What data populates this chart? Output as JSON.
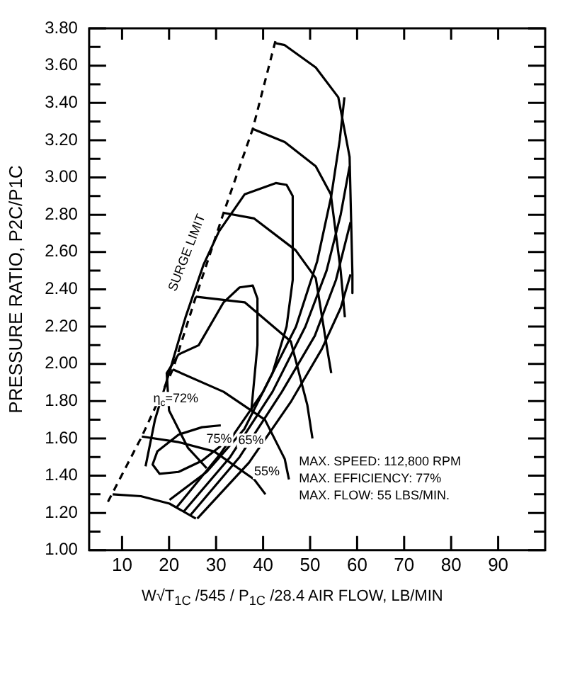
{
  "chart_data": {
    "type": "line",
    "ylabel": "PRESSURE RATIO, P2C/P1C",
    "xlabel": "W√T$_{1C}$ /545 / P$_{1C}$ /28.4 AIR FLOW, LB/MIN",
    "xlim": [
      3,
      100
    ],
    "xticks": [
      10,
      20,
      30,
      40,
      50,
      60,
      70,
      80,
      90
    ],
    "ylim": [
      1,
      3.8
    ],
    "yticks": [
      {
        "value": 1,
        "label": "1.00"
      },
      {
        "value": 1.1,
        "label": null
      },
      {
        "value": 1.2,
        "label": "1.20"
      },
      {
        "value": 1.3,
        "label": null
      },
      {
        "value": 1.4,
        "label": "1.40"
      },
      {
        "value": 1.5,
        "label": null
      },
      {
        "value": 1.6,
        "label": "1.60"
      },
      {
        "value": 1.7,
        "label": null
      },
      {
        "value": 1.8,
        "label": "1.80"
      },
      {
        "value": 1.9,
        "label": null
      },
      {
        "value": 2,
        "label": "2.00"
      },
      {
        "value": 2.1,
        "label": null
      },
      {
        "value": 2.2,
        "label": "2.20"
      },
      {
        "value": 2.3,
        "label": null
      },
      {
        "value": 2.4,
        "label": "2.40"
      },
      {
        "value": 2.5,
        "label": null
      },
      {
        "value": 2.6,
        "label": "2.60"
      },
      {
        "value": 2.7,
        "label": null
      },
      {
        "value": 2.8,
        "label": "2.80"
      },
      {
        "value": 2.9,
        "label": null
      },
      {
        "value": 3,
        "label": "3.00"
      },
      {
        "value": 3.1,
        "label": null
      },
      {
        "value": 3.2,
        "label": "3.20"
      },
      {
        "value": 3.3,
        "label": null
      },
      {
        "value": 3.4,
        "label": "3.40"
      },
      {
        "value": 3.5,
        "label": null
      },
      {
        "value": 3.6,
        "label": "3.60"
      },
      {
        "value": 3.7,
        "label": null
      },
      {
        "value": 3.8,
        "label": "3.80"
      }
    ],
    "grid": false,
    "legend": false,
    "marker": "none",
    "line_style": "solid",
    "series": [
      {
        "color": "#000000",
        "line_style": "dashed",
        "x": [
          7,
          14.2,
          20.8,
          25.7,
          31.6,
          37.8,
          42.7
        ],
        "values": [
          1.26,
          1.61,
          1.97,
          2.36,
          2.81,
          3.26,
          3.74
        ]
      },
      {
        "color": "#000000",
        "x": [
          8,
          14,
          20.1,
          25.7
        ],
        "values": [
          1.3,
          1.29,
          1.25,
          1.17
        ]
      },
      {
        "color": "#000000",
        "x": [
          14.2,
          22,
          29.6,
          38.1,
          40.5
        ],
        "values": [
          1.61,
          1.58,
          1.53,
          1.38,
          1.3
        ]
      },
      {
        "color": "#000000",
        "x": [
          20.8,
          31.6,
          40.4,
          44.6,
          45.5
        ],
        "values": [
          1.97,
          1.85,
          1.7,
          1.49,
          1.38
        ]
      },
      {
        "color": "#000000",
        "x": [
          25.7,
          36.1,
          45.9,
          49.4,
          50.5
        ],
        "values": [
          2.36,
          2.33,
          2.12,
          1.78,
          1.6
        ]
      },
      {
        "color": "#000000",
        "x": [
          31.6,
          38.1,
          46.9,
          51.2,
          53.5,
          54.5
        ],
        "values": [
          2.81,
          2.78,
          2.61,
          2.46,
          2.1,
          1.95
        ]
      },
      {
        "color": "#000000",
        "x": [
          37.8,
          44.6,
          51.2,
          54.4,
          56.5,
          57.4
        ],
        "values": [
          3.26,
          3.19,
          3.06,
          2.91,
          2.5,
          2.25
        ]
      },
      {
        "color": "#000000",
        "x": [
          42.7,
          44.6,
          51.2,
          56,
          58.4,
          59,
          59
        ],
        "values": [
          3.72,
          3.71,
          3.59,
          3.43,
          3.11,
          2.48,
          2.38
        ]
      },
      {
        "color": "#000000",
        "x": [
          31,
          27,
          22,
          17.5,
          16.5,
          18,
          22,
          27,
          31
        ],
        "values": [
          1.67,
          1.66,
          1.62,
          1.53,
          1.46,
          1.41,
          1.42,
          1.48,
          1.56
        ]
      },
      {
        "color": "#000000",
        "x": [
          28,
          24,
          20,
          19.5,
          22,
          26.3,
          31.6,
          35,
          37.8,
          38.8,
          38.8,
          37.5
        ],
        "values": [
          1.44,
          1.55,
          1.75,
          1.95,
          2.05,
          2.1,
          2.33,
          2.41,
          2.42,
          2.35,
          2.1,
          1.75
        ]
      },
      {
        "color": "#000000",
        "x": [
          15,
          17,
          20,
          23.5,
          27.3,
          30.6,
          36.1,
          42.7,
          45,
          46.3,
          46.3,
          45,
          42,
          36,
          28,
          20.1
        ],
        "values": [
          1.45,
          1.7,
          1.95,
          2.25,
          2.53,
          2.71,
          2.91,
          2.97,
          2.96,
          2.9,
          2.45,
          2.2,
          1.95,
          1.65,
          1.42,
          1.27
        ]
      },
      {
        "color": "#000000",
        "x": [
          21.6,
          31,
          40,
          47,
          51.5,
          54.5,
          56.3,
          57.3
        ],
        "values": [
          1.23,
          1.52,
          1.85,
          2.2,
          2.55,
          2.9,
          3.2,
          3.43
        ]
      },
      {
        "color": "#000000",
        "x": [
          23.2,
          33,
          42,
          49,
          53.5,
          56.5,
          58.4
        ],
        "values": [
          1.21,
          1.5,
          1.85,
          2.2,
          2.5,
          2.8,
          3.06
        ]
      },
      {
        "color": "#000000",
        "x": [
          24.6,
          35,
          44,
          51,
          55.5,
          58.6
        ],
        "values": [
          1.19,
          1.5,
          1.85,
          2.15,
          2.45,
          2.76
        ]
      },
      {
        "color": "#000000",
        "x": [
          26,
          37,
          46,
          52.5,
          56.5,
          58.6
        ],
        "values": [
          1.17,
          1.47,
          1.8,
          2.08,
          2.3,
          2.48
        ]
      }
    ],
    "annotations": [
      "SURGE LIMIT",
      "η$_{c}$=72%",
      "75%",
      "65%",
      "55%",
      "MAX. SPEED: 112,800 RPM",
      "MAX. EFFICIENCY: 77%",
      "MAX. FLOW: 55 LBS/MIN."
    ]
  }
}
